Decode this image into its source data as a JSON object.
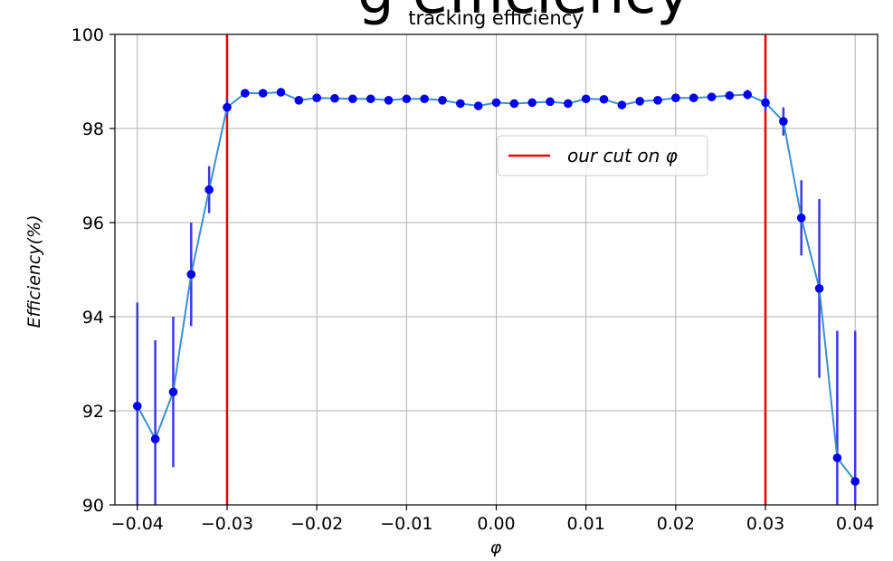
{
  "chart_data": {
    "type": "line",
    "big_title_fragment": "g efficiency",
    "title": "tracking efficiency",
    "xlabel": "φ",
    "ylabel": "Efficiency(%)",
    "xlim": [
      -0.0425,
      0.0425
    ],
    "ylim": [
      90,
      100
    ],
    "x_ticks": [
      -0.04,
      -0.03,
      -0.02,
      -0.01,
      0.0,
      0.01,
      0.02,
      0.03,
      0.04
    ],
    "x_tick_labels": [
      "−0.04",
      "−0.03",
      "−0.02",
      "−0.01",
      "0.00",
      "0.01",
      "0.02",
      "0.03",
      "0.04"
    ],
    "y_ticks": [
      90,
      92,
      94,
      96,
      98,
      100
    ],
    "y_tick_labels": [
      "90",
      "92",
      "94",
      "96",
      "98",
      "100"
    ],
    "grid": true,
    "legend_position": "upper-center-right",
    "colors": {
      "line": "#3a8fd0",
      "marker": "#0000ee",
      "errorbar": "#3a3ae0",
      "cut_line": "#ee0000",
      "grid": "#b0b0b0"
    },
    "series": [
      {
        "x": [
          -0.04,
          -0.038,
          -0.036,
          -0.034,
          -0.032,
          -0.03,
          -0.028,
          -0.026,
          -0.024,
          -0.022,
          -0.02,
          -0.018,
          -0.016,
          -0.014,
          -0.012,
          -0.01,
          -0.008,
          -0.006,
          -0.004,
          -0.002,
          0.0,
          0.002,
          0.004,
          0.006,
          0.008,
          0.01,
          0.012,
          0.014,
          0.016,
          0.018,
          0.02,
          0.022,
          0.024,
          0.026,
          0.028,
          0.03,
          0.032,
          0.034,
          0.036,
          0.038,
          0.04
        ],
        "y": [
          92.1,
          91.4,
          92.4,
          94.9,
          96.7,
          98.45,
          98.75,
          98.75,
          98.77,
          98.6,
          98.65,
          98.64,
          98.63,
          98.63,
          98.6,
          98.63,
          98.63,
          98.6,
          98.53,
          98.48,
          98.55,
          98.53,
          98.55,
          98.57,
          98.53,
          98.63,
          98.62,
          98.5,
          98.58,
          98.6,
          98.65,
          98.65,
          98.67,
          98.7,
          98.72,
          98.55,
          98.15,
          96.1,
          94.6,
          91.0,
          90.5
        ],
        "err": [
          2.2,
          2.1,
          1.6,
          1.1,
          0.5,
          0.18,
          0.05,
          0.05,
          0.05,
          0.05,
          0.05,
          0.05,
          0.05,
          0.05,
          0.05,
          0.05,
          0.05,
          0.05,
          0.05,
          0.05,
          0.05,
          0.05,
          0.05,
          0.05,
          0.05,
          0.05,
          0.05,
          0.05,
          0.05,
          0.05,
          0.05,
          0.05,
          0.05,
          0.05,
          0.1,
          0.18,
          0.3,
          0.8,
          1.9,
          2.7,
          3.2
        ]
      }
    ],
    "cut_lines": [
      -0.03,
      0.03
    ],
    "legend": [
      {
        "label": "our cut on φ",
        "kind": "cut_line"
      }
    ]
  }
}
